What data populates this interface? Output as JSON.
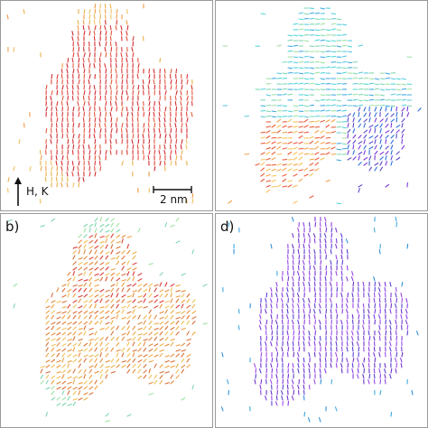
{
  "figure": {
    "panels": [
      {
        "id": "a",
        "label": "",
        "colors": [
          "#d9383a",
          "#e0453a",
          "#d43030",
          "#e35b3e",
          "#cf2a2f"
        ],
        "edge_colors": [
          "#e8b04a",
          "#f0c060",
          "#ee9a48"
        ]
      },
      {
        "id": "c",
        "label": "",
        "colors": [
          "#7fd6b0",
          "#4fd4d8",
          "#9fe0a0",
          "#5cc8e0",
          "#3fa8e0"
        ],
        "edge_colors": [
          "#f2a24a",
          "#e85a3a",
          "#f7c25a"
        ],
        "bottom_right_colors": [
          "#2f6fd8",
          "#5a4ac8",
          "#7a3ad8"
        ]
      },
      {
        "id": "b",
        "label": "b)",
        "colors": [
          "#e8b04a",
          "#f0a040",
          "#e58a3c",
          "#f2c05a",
          "#d9703a"
        ],
        "edge_colors": [
          "#9fe0a0",
          "#7fd6b0"
        ],
        "inner_colors": [
          "#d9383a",
          "#e0453a"
        ]
      },
      {
        "id": "d",
        "label": "d)",
        "colors": [
          "#7a3ad8",
          "#8b3ee0",
          "#6a32c8",
          "#9a48e6",
          "#5a40d0"
        ],
        "edge_colors": [
          "#3fa8e0",
          "#2f8fd8"
        ]
      }
    ],
    "annotations": {
      "field_label": "H, K",
      "scale_label": "2 nm"
    }
  }
}
